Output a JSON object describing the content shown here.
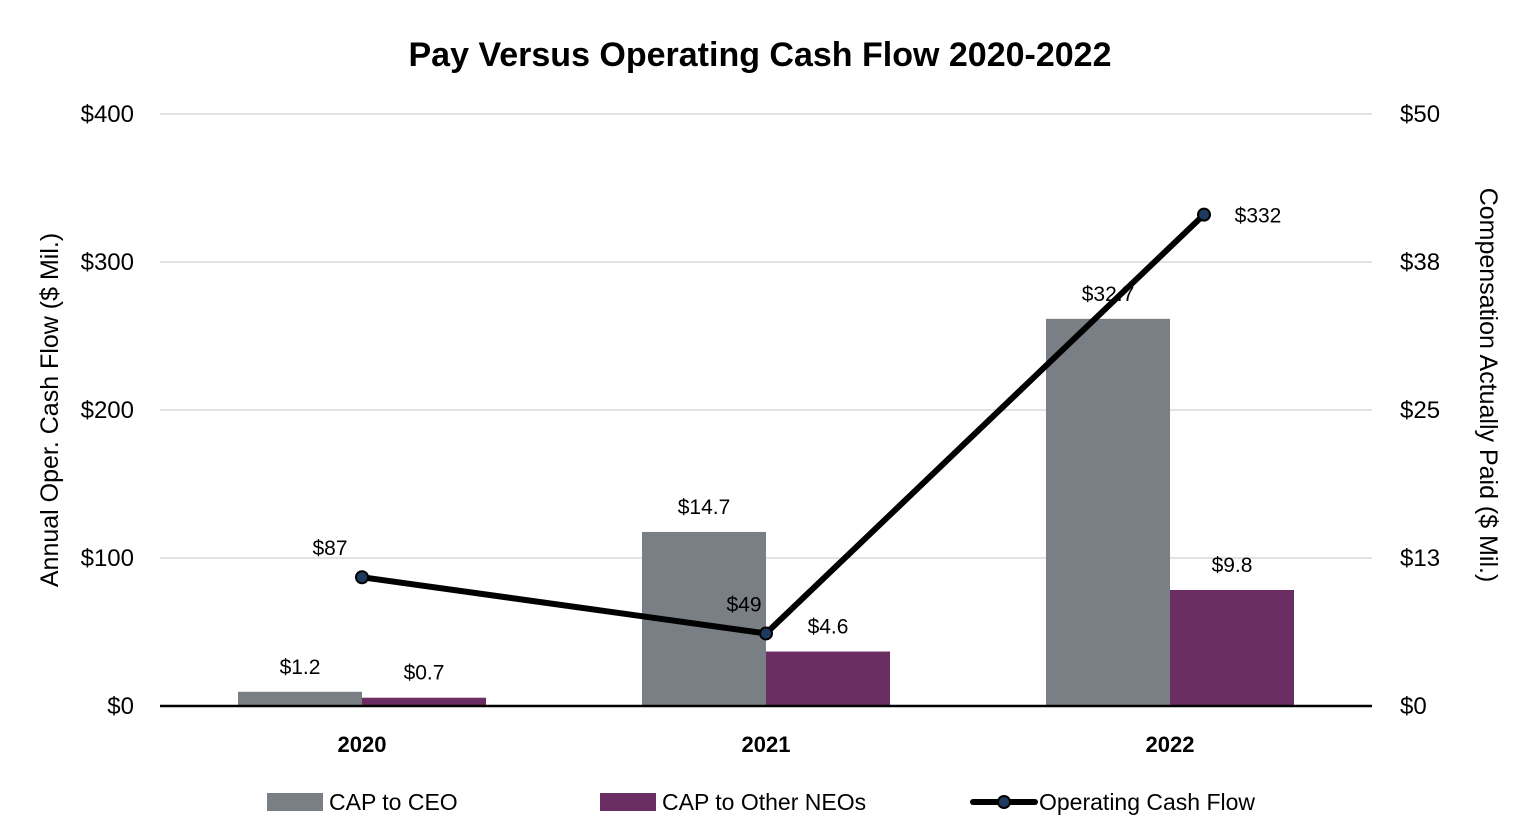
{
  "chart_data": {
    "type": "bar",
    "title": "Pay Versus Operating Cash Flow 2020-2022",
    "categories": [
      "2020",
      "2021",
      "2022"
    ],
    "y_left": {
      "label": "Annual Oper. Cash Flow ($ Mil.)",
      "range": [
        0,
        400
      ],
      "ticks": [
        0,
        100,
        200,
        300,
        400
      ],
      "tick_labels": [
        "$0",
        "$100",
        "$200",
        "$300",
        "$400"
      ]
    },
    "y_right": {
      "label": "Compensation Actually Paid ($ Mil.)",
      "range": [
        0,
        50
      ],
      "ticks": [
        0,
        12.5,
        25,
        37.5,
        50
      ],
      "tick_labels": [
        "$0",
        "$13",
        "$25",
        "$38",
        "$50"
      ]
    },
    "grid": true,
    "legend_position": "bottom",
    "series": [
      {
        "name": "CAP to CEO",
        "kind": "bar",
        "axis": "right",
        "color": "#7a7f86",
        "values": [
          1.2,
          14.7,
          32.7
        ],
        "labels": [
          "$1.2",
          "$14.7",
          "$32.7"
        ]
      },
      {
        "name": "CAP to Other NEOs",
        "kind": "bar",
        "axis": "right",
        "color": "#6a2e62",
        "values": [
          0.7,
          4.6,
          9.8
        ],
        "labels": [
          "$0.7",
          "$4.6",
          "$9.8"
        ]
      },
      {
        "name": "Operating Cash Flow",
        "kind": "line",
        "axis": "left",
        "color": "#000000",
        "marker_color": "#1f3a5f",
        "values": [
          87,
          49,
          332
        ],
        "labels": [
          "$87",
          "$49",
          "$332"
        ]
      }
    ]
  }
}
